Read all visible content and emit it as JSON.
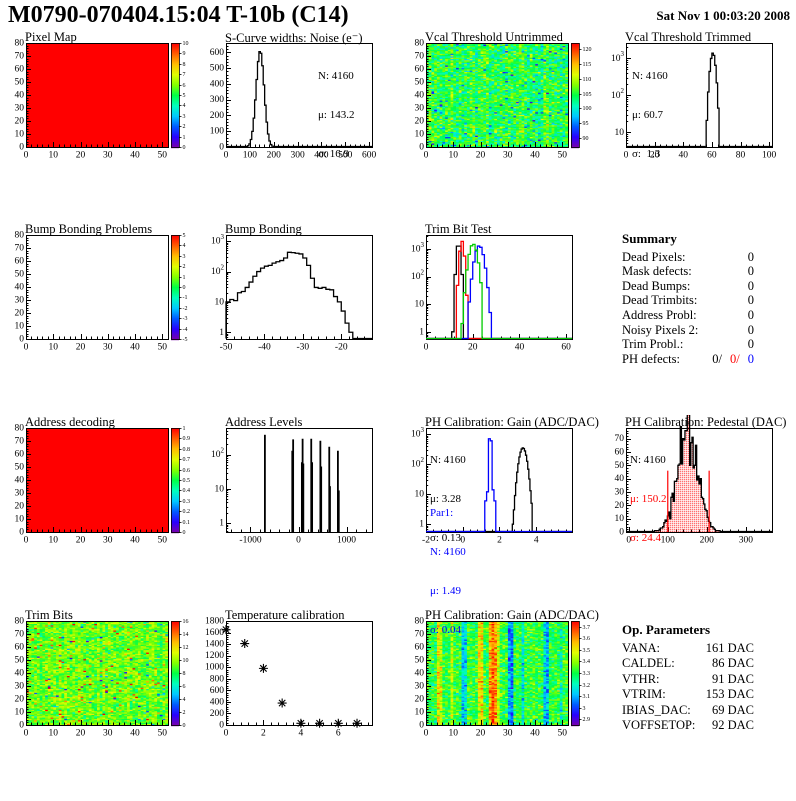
{
  "header": {
    "title": "M0790-070404.15:04 T-10b (C14)",
    "date": "Sat Nov  1 00:03:20 2008"
  },
  "colors": {
    "red": "#ff0000",
    "blue": "#0000ff",
    "green": "#00cc00",
    "black": "#000000"
  },
  "chart_data": [
    {
      "name": "pixel_map",
      "type": "heatmap",
      "title": "Pixel Map",
      "xlim": [
        0,
        52.1
      ],
      "ylim": [
        0,
        80
      ],
      "xticks": [
        0,
        10,
        20,
        30,
        40,
        50
      ],
      "yticks": [
        0,
        10,
        20,
        30,
        40,
        50,
        60,
        70,
        80
      ],
      "fill": "uniform",
      "value": 10,
      "zrange": [
        0,
        10
      ],
      "colorbar": {
        "ticks": [
          {
            "v": 10,
            "t": "10"
          },
          {
            "v": 9,
            "t": "9"
          },
          {
            "v": 8,
            "t": "8"
          },
          {
            "v": 7,
            "t": "7"
          },
          {
            "v": 6,
            "t": "6"
          },
          {
            "v": 5,
            "t": "5"
          },
          {
            "v": 4,
            "t": "4"
          },
          {
            "v": 3,
            "t": "3"
          },
          {
            "v": 2,
            "t": "2"
          },
          {
            "v": 1,
            "t": "1"
          },
          {
            "v": 0,
            "t": "0"
          }
        ]
      }
    },
    {
      "name": "scurve_noise",
      "type": "hist",
      "title": "S-Curve widths: Noise (e⁻)",
      "xlim": [
        0,
        612
      ],
      "xticks": [
        0,
        100,
        200,
        300,
        400,
        500,
        600
      ],
      "ylog": false,
      "ylim": [
        0,
        660
      ],
      "yticks": [
        0,
        100,
        200,
        300,
        400,
        500,
        600
      ],
      "gauss": {
        "mu": 143.2,
        "sigma": 16.9,
        "peak": 610
      },
      "binw": 6,
      "color": "#000000",
      "stats": [
        "N: 4160",
        "μ: 143.2",
        "σ: 16.9"
      ]
    },
    {
      "name": "vcal_untrimmed",
      "type": "heatmap",
      "title": "Vcal Threshold Untrimmed",
      "xlim": [
        0,
        52.1
      ],
      "ylim": [
        0,
        80
      ],
      "xticks": [
        0,
        10,
        20,
        30,
        40,
        50
      ],
      "yticks": [
        0,
        10,
        20,
        30,
        40,
        50,
        60,
        70,
        80
      ],
      "fill": "noise",
      "zrange": [
        87,
        122
      ],
      "noise": {
        "mean": 105,
        "sd": 3.0,
        "colSd": 1.0,
        "outlierProb": 0.06,
        "outlierShift": -8,
        "seed": 7
      },
      "colorbar": {
        "ticks": [
          {
            "v": 120,
            "t": "120"
          },
          {
            "v": 115,
            "t": "115"
          },
          {
            "v": 110,
            "t": "110"
          },
          {
            "v": 105,
            "t": "105"
          },
          {
            "v": 100,
            "t": "100"
          },
          {
            "v": 95,
            "t": "95"
          },
          {
            "v": 90,
            "t": "90"
          }
        ]
      }
    },
    {
      "name": "vcal_trimmed",
      "type": "hist",
      "title": "Vcal Threshold Trimmed",
      "xlim": [
        0,
        102
      ],
      "xticks": [
        0,
        20,
        40,
        60,
        80,
        100
      ],
      "ylog": true,
      "ylogmin": 4,
      "ylogmax": 2600,
      "ylabels": [
        [
          10,
          "10"
        ],
        [
          100,
          "10^2"
        ],
        [
          1000,
          "10^3"
        ]
      ],
      "gauss": {
        "mu": 60.7,
        "sigma": 1.45,
        "peak": 1400
      },
      "binw": 1,
      "color": "#000000",
      "quant": true,
      "stats": [
        "N: 4160",
        "μ: 60.7",
        "σ:  1.3"
      ]
    },
    {
      "name": "bump_problems",
      "type": "heatmap",
      "title": "Bump Bonding Problems",
      "xlim": [
        0,
        52.1
      ],
      "ylim": [
        0,
        80
      ],
      "xticks": [
        0,
        10,
        20,
        30,
        40,
        50
      ],
      "yticks": [
        0,
        10,
        20,
        30,
        40,
        50,
        60,
        70,
        80
      ],
      "fill": "none",
      "zrange": [
        -5,
        5
      ],
      "colorbar": {
        "ticks": [
          {
            "v": 5,
            "t": "5"
          },
          {
            "v": 4,
            "t": "4"
          },
          {
            "v": 3,
            "t": "3"
          },
          {
            "v": 2,
            "t": "2"
          },
          {
            "v": 1,
            "t": "1"
          },
          {
            "v": 0,
            "t": "0"
          },
          {
            "v": -1,
            "t": "-1"
          },
          {
            "v": -2,
            "t": "-2"
          },
          {
            "v": -3,
            "t": "-3"
          },
          {
            "v": -4,
            "t": "-4"
          },
          {
            "v": -5,
            "t": "-5"
          }
        ]
      }
    },
    {
      "name": "bump_bonding",
      "type": "hist",
      "title": "Bump Bonding",
      "xlim": [
        -50,
        -12
      ],
      "xticks": [
        -50,
        -40,
        -30,
        -20
      ],
      "ylog": true,
      "ylogmin": 0.6,
      "ylogmax": 1600,
      "ylabels": [
        [
          1,
          "1"
        ],
        [
          10,
          "10"
        ],
        [
          100,
          "10^2"
        ],
        [
          1000,
          "10^3"
        ]
      ],
      "bins": {
        "x0": -50,
        "w": 1,
        "values": [
          10,
          12,
          11,
          20,
          22,
          30,
          45,
          70,
          100,
          130,
          150,
          160,
          190,
          210,
          230,
          280,
          430,
          420,
          400,
          380,
          280,
          160,
          60,
          30,
          28,
          30,
          26,
          25,
          15,
          10,
          5,
          2,
          1
        ]
      },
      "color": "#000000"
    },
    {
      "name": "trim_bit_test",
      "type": "multihist",
      "title": "Trim Bit Test",
      "xlim": [
        0,
        62.5
      ],
      "xticks": [
        0,
        20,
        40,
        60
      ],
      "ylog": true,
      "ylogmin": 0.55,
      "ylogmax": 3200,
      "ylabels": [
        [
          1,
          "1"
        ],
        [
          10,
          "10"
        ],
        [
          100,
          "10^2"
        ],
        [
          1000,
          "10^3"
        ]
      ],
      "series": [
        {
          "color": "#000000",
          "gauss": {
            "mu": 14.0,
            "sigma": 0.65,
            "peak": 1700
          },
          "binw": 1
        },
        {
          "color": "#ff0000",
          "gauss": {
            "mu": 15.4,
            "sigma": 0.7,
            "peak": 1900
          },
          "binw": 1
        },
        {
          "color": "#0000ff",
          "gauss": {
            "mu": 22.8,
            "sigma": 1.4,
            "peak": 1300
          },
          "binw": 1
        },
        {
          "color": "#00cc00",
          "gauss": {
            "mu": 20.2,
            "sigma": 1.3,
            "peak": 1500
          },
          "binw": 1
        }
      ]
    },
    {
      "name": "address_decoding",
      "type": "heatmap",
      "title": "Address decoding",
      "xlim": [
        0,
        52.1
      ],
      "ylim": [
        0,
        80
      ],
      "xticks": [
        0,
        10,
        20,
        30,
        40,
        50
      ],
      "yticks": [
        0,
        10,
        20,
        30,
        40,
        50,
        60,
        70,
        80
      ],
      "fill": "uniform",
      "value": 1,
      "zrange": [
        0,
        1
      ],
      "colorbar": {
        "ticks": [
          {
            "v": 1,
            "t": "1"
          },
          {
            "v": 0.9,
            "t": "0.9"
          },
          {
            "v": 0.8,
            "t": "0.8"
          },
          {
            "v": 0.7,
            "t": "0.7"
          },
          {
            "v": 0.6,
            "t": "0.6"
          },
          {
            "v": 0.5,
            "t": "0.5"
          },
          {
            "v": 0.4,
            "t": "0.4"
          },
          {
            "v": 0.3,
            "t": "0.3"
          },
          {
            "v": 0.2,
            "t": "0.2"
          },
          {
            "v": 0.1,
            "t": "0.1"
          },
          {
            "v": 0,
            "t": "0"
          }
        ]
      }
    },
    {
      "name": "address_levels",
      "type": "spikes",
      "title": "Address Levels",
      "xlim": [
        -1510,
        1530
      ],
      "xticks": [
        -1000,
        0,
        1000
      ],
      "ylog": true,
      "ylogmin": 0.55,
      "ylogmax": 600,
      "ylabels": [
        [
          1,
          "1"
        ],
        [
          10,
          "10"
        ],
        [
          100,
          "10^2"
        ]
      ],
      "spikes": [
        [
          -700,
          380
        ],
        [
          -130,
          130
        ],
        [
          -112,
          280
        ],
        [
          70,
          60
        ],
        [
          85,
          290
        ],
        [
          100,
          55
        ],
        [
          265,
          290
        ],
        [
          283,
          60
        ],
        [
          455,
          255
        ],
        [
          472,
          45
        ],
        [
          640,
          170
        ],
        [
          655,
          12
        ],
        [
          820,
          130
        ],
        [
          838,
          9
        ]
      ],
      "color": "#000000"
    },
    {
      "name": "ph_gain_hist",
      "type": "multihist",
      "title": "PH Calibration: Gain (ADC/DAC)",
      "xlim": [
        -2,
        5.95
      ],
      "xticks": [
        -2,
        0,
        2,
        4
      ],
      "ylog": true,
      "ylogmin": 0.55,
      "ylogmax": 1600,
      "ylabels": [
        [
          1,
          "1"
        ],
        [
          10,
          "10"
        ],
        [
          100,
          "10^2"
        ],
        [
          1000,
          "10^3"
        ]
      ],
      "series": [
        {
          "color": "#000000",
          "gauss": {
            "mu": 3.28,
            "sigma": 0.16,
            "peak": 350
          },
          "binw": 0.06
        },
        {
          "color": "#0000ff",
          "bins": {
            "x0": 1.2,
            "w": 0.1,
            "values": [
              6,
              12,
              700,
              600,
              14,
              6
            ]
          }
        }
      ],
      "stats": [
        "N: 4160",
        "μ: 3.28",
        "σ: 0.13"
      ],
      "stats2": [
        "Par1:",
        "N: 4160",
        "μ: 1.49",
        "σ: 0.04"
      ]
    },
    {
      "name": "ph_pedestal",
      "type": "hist",
      "title": "PH Calibration: Pedestal (DAC)",
      "xlim": [
        -7,
        367
      ],
      "xticks": [
        0,
        100,
        200,
        300
      ],
      "ylog": false,
      "ylim": [
        0,
        78
      ],
      "yticks": [
        0,
        10,
        20,
        30,
        40,
        50,
        60,
        70
      ],
      "gauss": {
        "mu": 150.2,
        "sigma": 26,
        "peak": 75
      },
      "binw": 3,
      "color": "#000000",
      "noisy": true,
      "dotfill": "#ff0000",
      "vlines": [
        {
          "x": 100,
          "h": 46
        },
        {
          "x": 206,
          "h": 46
        }
      ],
      "stats": [
        "N: 4160",
        "μ: 150.2",
        "σ: 24.4"
      ]
    },
    {
      "name": "trim_bits_map",
      "type": "heatmap",
      "title": "Trim Bits",
      "xlim": [
        0,
        52.1
      ],
      "ylim": [
        0,
        80
      ],
      "xticks": [
        0,
        10,
        20,
        30,
        40,
        50
      ],
      "yticks": [
        0,
        10,
        20,
        30,
        40,
        50,
        60,
        70,
        80
      ],
      "fill": "noise",
      "zrange": [
        0,
        16
      ],
      "noise": {
        "mean": 9.4,
        "sd": 1.1,
        "colSd": 0.3,
        "outlierProb": 0.03,
        "outlierShift": 5,
        "lowProb": 0.02,
        "lowShift": -6,
        "seed": 11
      },
      "colorbar": {
        "ticks": [
          {
            "v": 16,
            "t": "16"
          },
          {
            "v": 14,
            "t": "14"
          },
          {
            "v": 12,
            "t": "12"
          },
          {
            "v": 10,
            "t": "10"
          },
          {
            "v": 8,
            "t": "8"
          },
          {
            "v": 6,
            "t": "6"
          },
          {
            "v": 4,
            "t": "4"
          },
          {
            "v": 2,
            "t": "2"
          },
          {
            "v": 0,
            "t": "0"
          }
        ]
      }
    },
    {
      "name": "temp_calibration",
      "type": "scatter",
      "title": "Temperature calibration",
      "xlim": [
        0,
        7.8
      ],
      "xticks": [
        0,
        2,
        4,
        6
      ],
      "ylog": false,
      "ylim": [
        0,
        1800
      ],
      "yticks": [
        0,
        200,
        400,
        600,
        800,
        1000,
        1200,
        1400,
        1600,
        1800
      ],
      "points": [
        [
          0,
          1650
        ],
        [
          1,
          1410
        ],
        [
          2,
          980
        ],
        [
          3,
          380
        ],
        [
          4,
          30
        ],
        [
          5,
          30
        ],
        [
          6,
          30
        ],
        [
          7,
          30
        ]
      ],
      "marker": "asterisk",
      "color": "#000000"
    },
    {
      "name": "ph_gain_map",
      "type": "heatmap",
      "title": "PH Calibration: Gain (ADC/DAC)",
      "xlim": [
        0,
        52.1
      ],
      "ylim": [
        0,
        80
      ],
      "xticks": [
        0,
        10,
        20,
        30,
        40,
        50
      ],
      "yticks": [
        0,
        10,
        20,
        30,
        40,
        50,
        60,
        70,
        80
      ],
      "fill": "noise",
      "zrange": [
        2.85,
        3.75
      ],
      "noise": {
        "mean": 3.32,
        "sd": 0.07,
        "colSd": 0.0,
        "seed": 13,
        "stripes": {
          "4": 3.5,
          "5": 3.46,
          "9": 3.44,
          "13": 3.12,
          "14": 3.16,
          "19": 3.5,
          "20": 3.52,
          "23": 3.56,
          "24": 3.68,
          "25": 3.6,
          "26": 3.46,
          "30": 3.08,
          "31": 3.06,
          "35": 3.18,
          "43": 3.12,
          "44": 3.1,
          "49": 3.22
        }
      },
      "colorbar": {
        "ticks": [
          {
            "v": 3.7,
            "t": "3.7"
          },
          {
            "v": 3.6,
            "t": "3.6"
          },
          {
            "v": 3.5,
            "t": "3.5"
          },
          {
            "v": 3.4,
            "t": "3.4"
          },
          {
            "v": 3.3,
            "t": "3.3"
          },
          {
            "v": 3.2,
            "t": "3.2"
          },
          {
            "v": 3.1,
            "t": "3.1"
          },
          {
            "v": 3.0,
            "t": "3"
          },
          {
            "v": 2.9,
            "t": "2.9"
          }
        ]
      }
    }
  ],
  "summary": {
    "title": "Summary",
    "rows": [
      {
        "label": "Dead Pixels:",
        "value": "0"
      },
      {
        "label": "Mask defects:",
        "value": "0"
      },
      {
        "label": "Dead Bumps:",
        "value": "0"
      },
      {
        "label": "Dead Trimbits:",
        "value": "0"
      },
      {
        "label": "Address Probl:",
        "value": "0"
      },
      {
        "label": "Noisy Pixels 2:",
        "value": "0"
      },
      {
        "label": "Trim Probl.:",
        "value": "0"
      }
    ],
    "ph_defects": {
      "label": "PH defects:",
      "black": "0/",
      "red": "0/",
      "blue": "0"
    }
  },
  "op_parameters": {
    "title": "Op. Parameters",
    "rows": [
      {
        "label": "VANA:",
        "value": "161 DAC"
      },
      {
        "label": "CALDEL:",
        "value": "86 DAC"
      },
      {
        "label": "VTHR:",
        "value": "91 DAC"
      },
      {
        "label": "VTRIM:",
        "value": "153 DAC"
      },
      {
        "label": "IBIAS_DAC:",
        "value": "69 DAC"
      },
      {
        "label": "VOFFSETOP:",
        "value": "92 DAC"
      }
    ]
  }
}
